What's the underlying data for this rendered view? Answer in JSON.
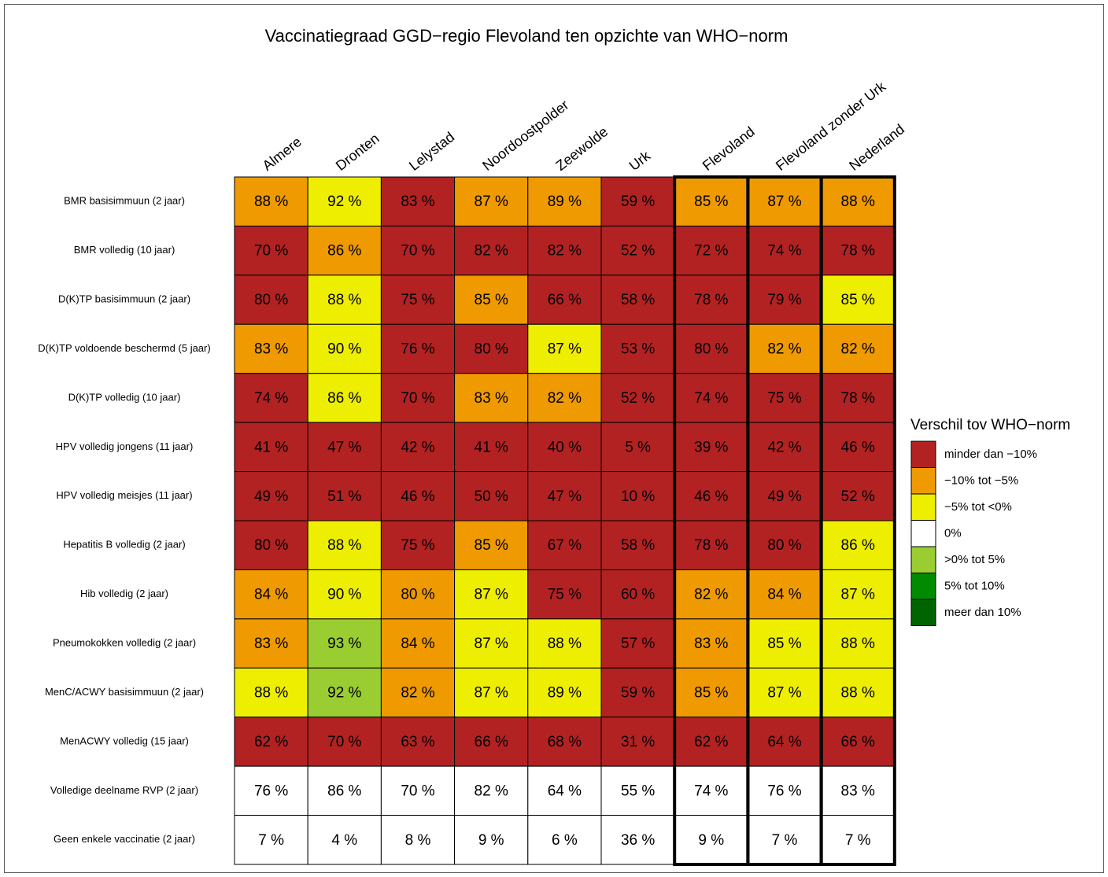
{
  "chart_data": {
    "type": "heatmap",
    "title": "Vaccinatiegraad GGD−regio Flevoland ten opzichte van WHO−norm",
    "columns": [
      "Almere",
      "Dronten",
      "Lelystad",
      "Noordoostpolder",
      "Zeewolde",
      "Urk",
      "Flevoland",
      "Flevoland zonder Urk",
      "Nederland"
    ],
    "outlined_columns": [
      "Flevoland",
      "Flevoland zonder Urk",
      "Nederland"
    ],
    "rows": [
      {
        "label": "BMR basisimmuun (2 jaar)",
        "values": [
          88,
          92,
          83,
          87,
          89,
          59,
          85,
          87,
          88
        ],
        "value_labels": [
          "88 %",
          "92 %",
          "83 %",
          "87 %",
          "89 %",
          "59 %",
          "85 %",
          "87 %",
          "88 %"
        ],
        "colors": [
          "#ee9a00",
          "#eeee00",
          "#b22222",
          "#ee9a00",
          "#ee9a00",
          "#b22222",
          "#ee9a00",
          "#ee9a00",
          "#ee9a00"
        ]
      },
      {
        "label": "BMR volledig (10 jaar)",
        "values": [
          70,
          86,
          70,
          82,
          82,
          52,
          72,
          74,
          78
        ],
        "value_labels": [
          "70 %",
          "86 %",
          "70 %",
          "82 %",
          "82 %",
          "52 %",
          "72 %",
          "74 %",
          "78 %"
        ],
        "colors": [
          "#b22222",
          "#ee9a00",
          "#b22222",
          "#b22222",
          "#b22222",
          "#b22222",
          "#b22222",
          "#b22222",
          "#b22222"
        ]
      },
      {
        "label": "D(K)TP basisimmuun (2 jaar)",
        "values": [
          80,
          88,
          75,
          85,
          66,
          58,
          78,
          79,
          85
        ],
        "value_labels": [
          "80 %",
          "88 %",
          "75 %",
          "85 %",
          "66 %",
          "58 %",
          "78 %",
          "79 %",
          "85 %"
        ],
        "colors": [
          "#b22222",
          "#eeee00",
          "#b22222",
          "#ee9a00",
          "#b22222",
          "#b22222",
          "#b22222",
          "#b22222",
          "#eeee00"
        ]
      },
      {
        "label": "D(K)TP voldoende beschermd (5 jaar)",
        "values": [
          83,
          90,
          76,
          80,
          87,
          53,
          80,
          82,
          82
        ],
        "value_labels": [
          "83 %",
          "90 %",
          "76 %",
          "80 %",
          "87 %",
          "53 %",
          "80 %",
          "82 %",
          "82 %"
        ],
        "colors": [
          "#ee9a00",
          "#eeee00",
          "#b22222",
          "#b22222",
          "#eeee00",
          "#b22222",
          "#b22222",
          "#ee9a00",
          "#ee9a00"
        ]
      },
      {
        "label": "D(K)TP volledig (10 jaar)",
        "values": [
          74,
          86,
          70,
          83,
          82,
          52,
          74,
          75,
          78
        ],
        "value_labels": [
          "74 %",
          "86 %",
          "70 %",
          "83 %",
          "82 %",
          "52 %",
          "74 %",
          "75 %",
          "78 %"
        ],
        "colors": [
          "#b22222",
          "#eeee00",
          "#b22222",
          "#ee9a00",
          "#ee9a00",
          "#b22222",
          "#b22222",
          "#b22222",
          "#b22222"
        ]
      },
      {
        "label": "HPV volledig jongens (11 jaar)",
        "values": [
          41,
          47,
          42,
          41,
          40,
          5,
          39,
          42,
          46
        ],
        "value_labels": [
          "41 %",
          "47 %",
          "42 %",
          "41 %",
          "40 %",
          "5 %",
          "39 %",
          "42 %",
          "46 %"
        ],
        "colors": [
          "#b22222",
          "#b22222",
          "#b22222",
          "#b22222",
          "#b22222",
          "#b22222",
          "#b22222",
          "#b22222",
          "#b22222"
        ]
      },
      {
        "label": "HPV volledig meisjes (11 jaar)",
        "values": [
          49,
          51,
          46,
          50,
          47,
          10,
          46,
          49,
          52
        ],
        "value_labels": [
          "49 %",
          "51 %",
          "46 %",
          "50 %",
          "47 %",
          "10 %",
          "46 %",
          "49 %",
          "52 %"
        ],
        "colors": [
          "#b22222",
          "#b22222",
          "#b22222",
          "#b22222",
          "#b22222",
          "#b22222",
          "#b22222",
          "#b22222",
          "#b22222"
        ]
      },
      {
        "label": "Hepatitis B volledig (2 jaar)",
        "values": [
          80,
          88,
          75,
          85,
          67,
          58,
          78,
          80,
          86
        ],
        "value_labels": [
          "80 %",
          "88 %",
          "75 %",
          "85 %",
          "67 %",
          "58 %",
          "78 %",
          "80 %",
          "86 %"
        ],
        "colors": [
          "#b22222",
          "#eeee00",
          "#b22222",
          "#ee9a00",
          "#b22222",
          "#b22222",
          "#b22222",
          "#b22222",
          "#eeee00"
        ]
      },
      {
        "label": "Hib volledig (2 jaar)",
        "values": [
          84,
          90,
          80,
          87,
          75,
          60,
          82,
          84,
          87
        ],
        "value_labels": [
          "84 %",
          "90 %",
          "80 %",
          "87 %",
          "75 %",
          "60 %",
          "82 %",
          "84 %",
          "87 %"
        ],
        "colors": [
          "#ee9a00",
          "#eeee00",
          "#ee9a00",
          "#eeee00",
          "#b22222",
          "#b22222",
          "#ee9a00",
          "#ee9a00",
          "#eeee00"
        ]
      },
      {
        "label": "Pneumokokken volledig (2 jaar)",
        "values": [
          83,
          93,
          84,
          87,
          88,
          57,
          83,
          85,
          88
        ],
        "value_labels": [
          "83 %",
          "93 %",
          "84 %",
          "87 %",
          "88 %",
          "57 %",
          "83 %",
          "85 %",
          "88 %"
        ],
        "colors": [
          "#ee9a00",
          "#9acd32",
          "#ee9a00",
          "#eeee00",
          "#eeee00",
          "#b22222",
          "#ee9a00",
          "#eeee00",
          "#eeee00"
        ]
      },
      {
        "label": "MenC/ACWY basisimmuun (2 jaar)",
        "values": [
          88,
          92,
          82,
          87,
          89,
          59,
          85,
          87,
          88
        ],
        "value_labels": [
          "88 %",
          "92 %",
          "82 %",
          "87 %",
          "89 %",
          "59 %",
          "85 %",
          "87 %",
          "88 %"
        ],
        "colors": [
          "#eeee00",
          "#9acd32",
          "#ee9a00",
          "#eeee00",
          "#eeee00",
          "#b22222",
          "#ee9a00",
          "#eeee00",
          "#eeee00"
        ]
      },
      {
        "label": "MenACWY volledig (15 jaar)",
        "values": [
          62,
          70,
          63,
          66,
          68,
          31,
          62,
          64,
          66
        ],
        "value_labels": [
          "62 %",
          "70 %",
          "63 %",
          "66 %",
          "68 %",
          "31 %",
          "62 %",
          "64 %",
          "66 %"
        ],
        "colors": [
          "#b22222",
          "#b22222",
          "#b22222",
          "#b22222",
          "#b22222",
          "#b22222",
          "#b22222",
          "#b22222",
          "#b22222"
        ]
      },
      {
        "label": "Volledige deelname RVP (2 jaar)",
        "values": [
          76,
          86,
          70,
          82,
          64,
          55,
          74,
          76,
          83
        ],
        "value_labels": [
          "76 %",
          "86 %",
          "70 %",
          "82 %",
          "64 %",
          "55 %",
          "74 %",
          "76 %",
          "83 %"
        ],
        "colors": [
          "#ffffff",
          "#ffffff",
          "#ffffff",
          "#ffffff",
          "#ffffff",
          "#ffffff",
          "#ffffff",
          "#ffffff",
          "#ffffff"
        ]
      },
      {
        "label": "Geen enkele vaccinatie (2 jaar)",
        "values": [
          7,
          4,
          8,
          9,
          6,
          36,
          9,
          7,
          7
        ],
        "value_labels": [
          "7 %",
          "4 %",
          "8 %",
          "9 %",
          "6 %",
          "36 %",
          "9 %",
          "7 %",
          "7 %"
        ],
        "colors": [
          "#ffffff",
          "#ffffff",
          "#ffffff",
          "#ffffff",
          "#ffffff",
          "#ffffff",
          "#ffffff",
          "#ffffff",
          "#ffffff"
        ]
      }
    ],
    "legend": {
      "title": "Verschil tov WHO−norm",
      "items": [
        {
          "label": "minder dan −10%",
          "color": "#b22222"
        },
        {
          "label": "−10% tot −5%",
          "color": "#ee9a00"
        },
        {
          "label": "−5% tot <0%",
          "color": "#eeee00"
        },
        {
          "label": "0%",
          "color": "#ffffff"
        },
        {
          "label": ">0% tot 5%",
          "color": "#9acd32"
        },
        {
          "label": "5% tot 10%",
          "color": "#008b00"
        },
        {
          "label": "meer dan 10%",
          "color": "#006400"
        }
      ]
    }
  }
}
